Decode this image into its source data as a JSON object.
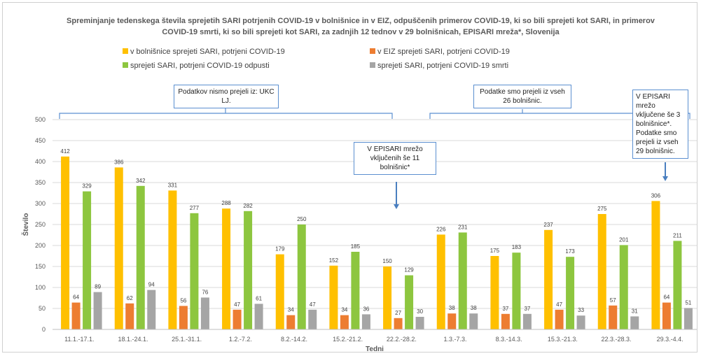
{
  "chart_data": {
    "type": "bar",
    "title": "Spreminjanje tedenskega števila sprejetih SARI potrjenih COVID-19 v bolnišnice in v EIZ, odpuščenih primerov COVID-19, ki so bili sprejeti kot SARI, in primerov COVID-19 smrti, ki so bili sprejeti kot SARI, za zadnjih 12 tednov  v 29 bolnišnicah, EPISARI mreža*, Slovenija",
    "xlabel": "Tedni",
    "ylabel": "Število",
    "ylim": [
      0,
      500
    ],
    "yticks": [
      0,
      50,
      100,
      150,
      200,
      250,
      300,
      350,
      400,
      450,
      500
    ],
    "grid": true,
    "legend_position": "top",
    "categories": [
      "11.1.-17.1.",
      "18.1.-24.1.",
      "25.1.-31.1.",
      "1.2.-7.2.",
      "8.2.-14.2.",
      "15.2.-21.2.",
      "22.2.-28.2.",
      "1.3.-7.3.",
      "8.3.-14.3.",
      "15.3.-21.3.",
      "22.3.-28.3.",
      "29.3.-4.4."
    ],
    "series": [
      {
        "name": "v bolnišnice sprejeti SARI, potrjeni COVID-19",
        "color": "#FFC000",
        "values": [
          412,
          386,
          331,
          288,
          179,
          152,
          150,
          226,
          175,
          237,
          275,
          306
        ]
      },
      {
        "name": "v EIZ sprejeti SARI, potrjeni COVID-19",
        "color": "#ED7D31",
        "values": [
          64,
          62,
          56,
          47,
          34,
          34,
          27,
          38,
          37,
          47,
          57,
          64
        ]
      },
      {
        "name": "sprejeti SARI, potrjeni COVID-19 odpusti",
        "color": "#8DC63F",
        "values": [
          329,
          342,
          277,
          282,
          250,
          185,
          129,
          231,
          183,
          173,
          201,
          211
        ]
      },
      {
        "name": "sprejeti SARI, potrjeni COVID-19 smrti",
        "color": "#A5A5A5",
        "values": [
          89,
          94,
          76,
          61,
          47,
          36,
          30,
          38,
          37,
          33,
          31,
          51
        ]
      }
    ],
    "annotations": [
      {
        "id": "ann1",
        "text": "Podatkov nismo prejeli iz: UKC LJ."
      },
      {
        "id": "ann2",
        "text": "Podatke smo prejeli iz vseh 26 bolnišnic."
      },
      {
        "id": "ann3",
        "text": "V EPISARI mrežo vključenih še 11 bolnišnic*"
      },
      {
        "id": "ann4",
        "text": "V EPISARI mrežo vključene še 3 bolnišnice*. Podatke smo prejeli iz vseh 29 bolnišnic."
      }
    ]
  }
}
